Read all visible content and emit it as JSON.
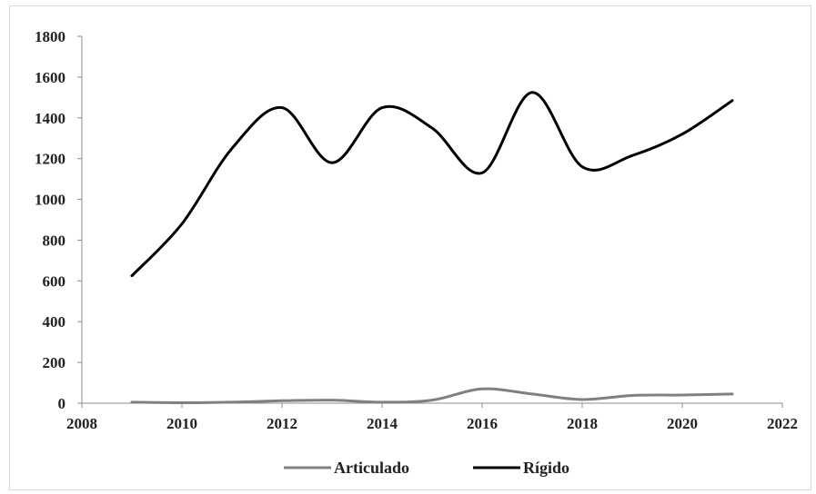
{
  "chart_data": {
    "type": "line",
    "title": "",
    "xlabel": "",
    "ylabel": "",
    "xlim": [
      2008,
      2022
    ],
    "ylim": [
      0,
      1800
    ],
    "x_ticks": [
      "2008",
      "2010",
      "2012",
      "2014",
      "2016",
      "2018",
      "2020",
      "2022"
    ],
    "y_ticks": [
      "0",
      "200",
      "400",
      "600",
      "800",
      "1000",
      "1200",
      "1400",
      "1600",
      "1800"
    ],
    "grid": false,
    "legend": "bottom",
    "x": [
      2009,
      2010,
      2011,
      2012,
      2013,
      2014,
      2015,
      2016,
      2017,
      2018,
      2019,
      2020,
      2021
    ],
    "series": [
      {
        "name": "Articulado",
        "color": "#808080",
        "values": [
          5,
          2,
          5,
          12,
          15,
          5,
          15,
          70,
          45,
          18,
          38,
          40,
          45
        ]
      },
      {
        "name": "Rígido",
        "color": "#000000",
        "values": [
          625,
          880,
          1250,
          1450,
          1180,
          1450,
          1350,
          1130,
          1525,
          1160,
          1215,
          1320,
          1485
        ]
      }
    ]
  }
}
